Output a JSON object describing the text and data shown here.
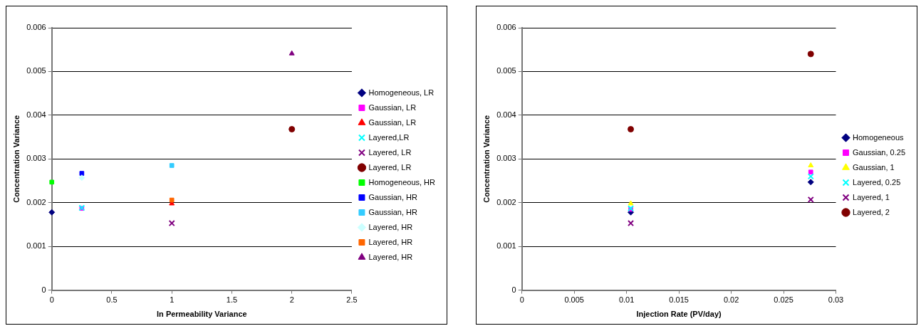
{
  "chart_data": [
    {
      "type": "scatter",
      "xlabel": "ln Permeability Variance",
      "ylabel": "Concentration Variance",
      "xlim": [
        0,
        2.5
      ],
      "xticks": [
        0,
        0.5,
        1,
        1.5,
        2,
        2.5
      ],
      "ylim": [
        0,
        0.006
      ],
      "yticks": [
        0,
        0.001,
        0.002,
        0.003,
        0.004,
        0.005,
        0.006
      ],
      "grid": "y",
      "legend": "right",
      "series": [
        {
          "name": "Homogeneous, LR",
          "color": "#000080",
          "marker": "diamond",
          "x": [
            0
          ],
          "values": [
            0.00178
          ]
        },
        {
          "name": "Gaussian, LR",
          "color": "#ff00ff",
          "marker": "square",
          "x": [
            0.25
          ],
          "values": [
            0.00187
          ]
        },
        {
          "name": "Gaussian, LR",
          "color": "#ff0000",
          "marker": "triangle",
          "x": [
            1
          ],
          "values": [
            0.00198
          ]
        },
        {
          "name": "Layered,LR",
          "color": "#00ffff",
          "marker": "cross",
          "x": [
            0.25
          ],
          "values": [
            0.00188
          ]
        },
        {
          "name": "Layered, LR",
          "color": "#800080",
          "marker": "cross",
          "x": [
            1
          ],
          "values": [
            0.00153
          ]
        },
        {
          "name": "Layered, LR",
          "color": "#800000",
          "marker": "circle",
          "x": [
            2
          ],
          "values": [
            0.00368
          ]
        },
        {
          "name": "Homogeneous, HR",
          "color": "#00ff00",
          "marker": "square",
          "x": [
            0
          ],
          "values": [
            0.00247
          ]
        },
        {
          "name": "Gaussian, HR",
          "color": "#0000ff",
          "marker": "square",
          "x": [
            0.25
          ],
          "values": [
            0.00267
          ]
        },
        {
          "name": "Gaussian, HR",
          "color": "#33ccff",
          "marker": "square",
          "x": [
            1
          ],
          "values": [
            0.00285
          ]
        },
        {
          "name": "Layered, HR",
          "color": "#ccffff",
          "marker": "diamond",
          "x": [
            0.25
          ],
          "values": [
            0.00257
          ]
        },
        {
          "name": "Layered, HR",
          "color": "#ff6600",
          "marker": "square",
          "x": [
            1
          ],
          "values": [
            0.00206
          ]
        },
        {
          "name": "Layered, HR",
          "color": "#800080",
          "marker": "triangle",
          "x": [
            2
          ],
          "values": [
            0.00541
          ]
        }
      ]
    },
    {
      "type": "scatter",
      "xlabel": "Injection Rate (PV/day)",
      "ylabel": "Concentration Variance",
      "xlim": [
        0,
        0.03
      ],
      "xticks": [
        0,
        0.005,
        0.01,
        0.015,
        0.02,
        0.025,
        0.03
      ],
      "ylim": [
        0,
        0.006
      ],
      "yticks": [
        0,
        0.001,
        0.002,
        0.003,
        0.004,
        0.005,
        0.006
      ],
      "grid": "y",
      "legend": "right",
      "series": [
        {
          "name": "Homogeneous",
          "color": "#000080",
          "marker": "diamond",
          "x": [
            0.0104,
            0.0276
          ],
          "values": [
            0.00178,
            0.00247
          ]
        },
        {
          "name": "Gaussian, 0.25",
          "color": "#ff00ff",
          "marker": "square",
          "x": [
            0.0104,
            0.0276
          ],
          "values": [
            0.00185,
            0.0027
          ]
        },
        {
          "name": "Gaussian, 1",
          "color": "#ffff00",
          "marker": "triangle",
          "x": [
            0.0104,
            0.0276
          ],
          "values": [
            0.00198,
            0.00285
          ]
        },
        {
          "name": "Layered, 0.25",
          "color": "#00ffff",
          "marker": "cross",
          "x": [
            0.0104,
            0.0276
          ],
          "values": [
            0.00187,
            0.0026
          ]
        },
        {
          "name": "Layered, 1",
          "color": "#800080",
          "marker": "cross",
          "x": [
            0.0104,
            0.0276
          ],
          "values": [
            0.00153,
            0.00207
          ]
        },
        {
          "name": "Layered, 2",
          "color": "#800000",
          "marker": "circle",
          "x": [
            0.0104,
            0.0276
          ],
          "values": [
            0.00368,
            0.0054
          ]
        }
      ]
    }
  ]
}
